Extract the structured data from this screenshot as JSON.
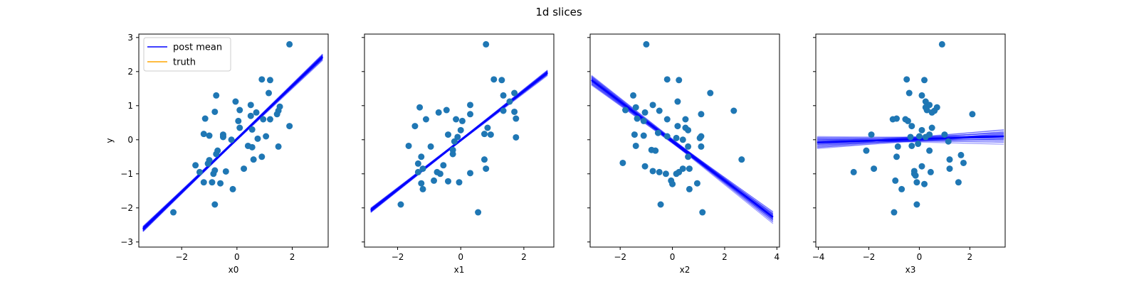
{
  "figure": {
    "title": "1d slices",
    "colors": {
      "points": "#1f77b4",
      "post_mean": "#0000ff",
      "truth": "#ffa500",
      "axes": "#000000"
    }
  },
  "chart_data": [
    {
      "type": "scatter",
      "xlabel": "x0",
      "ylabel": "y",
      "xlim": [
        -3.55,
        3.3
      ],
      "ylim": [
        -3.15,
        3.1
      ],
      "xticks": [
        -2,
        0,
        2
      ],
      "xtick_labels": [
        "−2",
        "0",
        "2"
      ],
      "yticks": [
        -3,
        -2,
        -1,
        0,
        1,
        2,
        3
      ],
      "ytick_labels": [
        "−3",
        "−2",
        "−1",
        "0",
        "1",
        "2",
        "3"
      ],
      "legend": {
        "position": "upper-left",
        "entries": [
          {
            "label": "post mean",
            "color": "#0000ff"
          },
          {
            "label": "truth",
            "color": "#ffa500"
          }
        ]
      },
      "line": {
        "x": [
          -3.4,
          3.1
        ],
        "y": [
          -2.62,
          2.43
        ],
        "spread_end": 0.07
      },
      "points": [
        [
          1.9,
          2.8
        ],
        [
          0.9,
          1.77
        ],
        [
          1.2,
          1.75
        ],
        [
          1.15,
          1.37
        ],
        [
          -0.75,
          1.3
        ],
        [
          -0.05,
          1.12
        ],
        [
          0.5,
          1.02
        ],
        [
          1.55,
          0.97
        ],
        [
          1.5,
          0.85
        ],
        [
          0.1,
          0.87
        ],
        [
          -0.8,
          0.82
        ],
        [
          0.7,
          0.8
        ],
        [
          1.45,
          0.75
        ],
        [
          0.5,
          0.7
        ],
        [
          -1.15,
          0.62
        ],
        [
          1.2,
          0.6
        ],
        [
          0.95,
          0.6
        ],
        [
          0.05,
          0.55
        ],
        [
          0.1,
          0.35
        ],
        [
          -1.2,
          0.17
        ],
        [
          -0.5,
          0.15
        ],
        [
          -1.0,
          0.12
        ],
        [
          0.55,
          0.3
        ],
        [
          1.05,
          0.1
        ],
        [
          -0.5,
          0.08
        ],
        [
          1.9,
          0.4
        ],
        [
          0.75,
          0.03
        ],
        [
          -0.2,
          0.0
        ],
        [
          0.4,
          -0.18
        ],
        [
          0.55,
          -0.22
        ],
        [
          1.5,
          -0.2
        ],
        [
          -0.7,
          -0.32
        ],
        [
          -0.75,
          -0.42
        ],
        [
          0.9,
          -0.5
        ],
        [
          -1.0,
          -0.6
        ],
        [
          0.6,
          -0.58
        ],
        [
          -1.5,
          -0.75
        ],
        [
          -1.05,
          -0.7
        ],
        [
          -1.35,
          -0.95
        ],
        [
          -0.8,
          -0.9
        ],
        [
          -0.85,
          -1.0
        ],
        [
          -0.4,
          -0.93
        ],
        [
          0.25,
          -0.85
        ],
        [
          -1.2,
          -1.25
        ],
        [
          -0.9,
          -1.25
        ],
        [
          -0.6,
          -1.28
        ],
        [
          -0.15,
          -1.45
        ],
        [
          -0.8,
          -1.9
        ],
        [
          -2.3,
          -2.13
        ],
        [
          -0.5,
          0.1
        ]
      ]
    },
    {
      "type": "scatter",
      "xlabel": "x1",
      "xlim": [
        -3.05,
        2.95
      ],
      "ylim": [
        -3.15,
        3.1
      ],
      "xticks": [
        -2,
        0,
        2
      ],
      "xtick_labels": [
        "−2",
        "0",
        "2"
      ],
      "yticks": [
        -3,
        -2,
        -1,
        0,
        1,
        2,
        3
      ],
      "line": {
        "x": [
          -2.85,
          2.75
        ],
        "y": [
          -2.07,
          1.97
        ],
        "spread_end": 0.06
      },
      "points": [
        [
          0.8,
          2.8
        ],
        [
          1.05,
          1.77
        ],
        [
          1.3,
          1.75
        ],
        [
          1.7,
          1.37
        ],
        [
          1.35,
          1.3
        ],
        [
          1.55,
          1.12
        ],
        [
          0.3,
          1.02
        ],
        [
          -1.3,
          0.95
        ],
        [
          -0.45,
          0.87
        ],
        [
          1.7,
          0.82
        ],
        [
          -0.7,
          0.8
        ],
        [
          1.35,
          0.85
        ],
        [
          0.3,
          0.75
        ],
        [
          -1.1,
          0.6
        ],
        [
          1.75,
          0.62
        ],
        [
          0.05,
          0.55
        ],
        [
          -0.15,
          0.6
        ],
        [
          0.85,
          0.35
        ],
        [
          -1.45,
          0.4
        ],
        [
          0.0,
          0.28
        ],
        [
          0.75,
          0.17
        ],
        [
          0.95,
          0.15
        ],
        [
          -0.4,
          0.15
        ],
        [
          -0.1,
          0.08
        ],
        [
          1.75,
          0.07
        ],
        [
          -0.2,
          -0.05
        ],
        [
          -1.65,
          -0.18
        ],
        [
          -0.95,
          -0.2
        ],
        [
          -0.25,
          -0.3
        ],
        [
          -0.25,
          -0.42
        ],
        [
          -1.25,
          -0.5
        ],
        [
          0.75,
          -0.58
        ],
        [
          -1.35,
          -0.7
        ],
        [
          -0.55,
          -0.75
        ],
        [
          0.8,
          -0.85
        ],
        [
          -1.2,
          -0.85
        ],
        [
          -0.75,
          -0.95
        ],
        [
          -0.65,
          -1.0
        ],
        [
          0.3,
          -0.98
        ],
        [
          -1.35,
          -0.95
        ],
        [
          -0.85,
          -1.2
        ],
        [
          -0.4,
          -1.22
        ],
        [
          -0.05,
          -1.25
        ],
        [
          -1.25,
          -1.28
        ],
        [
          -1.2,
          -1.45
        ],
        [
          -1.9,
          -1.9
        ],
        [
          0.55,
          -2.13
        ]
      ]
    },
    {
      "type": "scatter",
      "xlabel": "x2",
      "xlim": [
        -3.15,
        4.1
      ],
      "ylim": [
        -3.15,
        3.1
      ],
      "xticks": [
        -2,
        0,
        2,
        4
      ],
      "xtick_labels": [
        "−2",
        "0",
        "2",
        "4"
      ],
      "yticks": [
        -3,
        -2,
        -1,
        0,
        1,
        2,
        3
      ],
      "line": {
        "x": [
          -3.1,
          3.85
        ],
        "y": [
          1.75,
          -2.27
        ],
        "spread_end": 0.13
      },
      "points": [
        [
          -1.0,
          2.8
        ],
        [
          -0.2,
          1.77
        ],
        [
          0.25,
          1.75
        ],
        [
          1.45,
          1.37
        ],
        [
          -1.5,
          1.3
        ],
        [
          0.2,
          1.12
        ],
        [
          -0.75,
          1.02
        ],
        [
          -1.4,
          0.95
        ],
        [
          -1.8,
          0.87
        ],
        [
          2.35,
          0.85
        ],
        [
          -0.5,
          0.85
        ],
        [
          -1.05,
          0.8
        ],
        [
          1.1,
          0.75
        ],
        [
          -1.35,
          0.62
        ],
        [
          -0.2,
          0.6
        ],
        [
          0.5,
          0.6
        ],
        [
          -1.1,
          0.55
        ],
        [
          0.2,
          0.4
        ],
        [
          0.5,
          0.35
        ],
        [
          0.6,
          0.28
        ],
        [
          -0.55,
          0.2
        ],
        [
          -1.45,
          0.15
        ],
        [
          -1.1,
          0.12
        ],
        [
          1.1,
          0.1
        ],
        [
          0.15,
          0.05
        ],
        [
          1.05,
          0.05
        ],
        [
          -0.2,
          0.1
        ],
        [
          0.4,
          0.0
        ],
        [
          -1.4,
          -0.18
        ],
        [
          0.6,
          -0.2
        ],
        [
          1.1,
          -0.2
        ],
        [
          -0.8,
          -0.3
        ],
        [
          -0.65,
          -0.32
        ],
        [
          0.6,
          -0.5
        ],
        [
          2.65,
          -0.58
        ],
        [
          -1.9,
          -0.68
        ],
        [
          -1.05,
          -0.78
        ],
        [
          0.4,
          -0.85
        ],
        [
          0.65,
          -0.85
        ],
        [
          -0.75,
          -0.92
        ],
        [
          -0.5,
          -0.95
        ],
        [
          0.25,
          -0.95
        ],
        [
          -0.25,
          -1.0
        ],
        [
          0.15,
          -1.0
        ],
        [
          -0.05,
          -1.2
        ],
        [
          0.0,
          -1.3
        ],
        [
          0.95,
          -1.28
        ],
        [
          0.65,
          -1.45
        ],
        [
          -0.45,
          -1.9
        ],
        [
          1.15,
          -2.13
        ]
      ]
    },
    {
      "type": "scatter",
      "xlabel": "x3",
      "xlim": [
        -4.1,
        3.4
      ],
      "ylim": [
        -3.15,
        3.1
      ],
      "xticks": [
        -4,
        -2,
        0,
        2
      ],
      "xtick_labels": [
        "−4",
        "−2",
        "0",
        "2"
      ],
      "yticks": [
        -3,
        -2,
        -1,
        0,
        1,
        2,
        3
      ],
      "line": {
        "x": [
          -4.05,
          3.35
        ],
        "y": [
          -0.08,
          0.1
        ],
        "spread_end": 0.16
      },
      "points": [
        [
          0.9,
          2.8
        ],
        [
          -0.5,
          1.77
        ],
        [
          0.2,
          1.75
        ],
        [
          -0.4,
          1.37
        ],
        [
          0.1,
          1.3
        ],
        [
          0.25,
          1.12
        ],
        [
          0.4,
          1.02
        ],
        [
          0.25,
          0.95
        ],
        [
          0.3,
          0.87
        ],
        [
          0.7,
          0.95
        ],
        [
          0.6,
          0.85
        ],
        [
          0.5,
          0.8
        ],
        [
          2.1,
          0.75
        ],
        [
          -0.9,
          0.62
        ],
        [
          -0.55,
          0.6
        ],
        [
          -1.05,
          0.6
        ],
        [
          -0.45,
          0.55
        ],
        [
          -0.3,
          0.4
        ],
        [
          0.5,
          0.35
        ],
        [
          0.1,
          0.28
        ],
        [
          0.4,
          0.15
        ],
        [
          1.0,
          0.15
        ],
        [
          -1.9,
          0.15
        ],
        [
          0.0,
          0.1
        ],
        [
          0.25,
          0.08
        ],
        [
          -0.35,
          0.08
        ],
        [
          1.15,
          -0.05
        ],
        [
          -0.05,
          -0.12
        ],
        [
          -0.3,
          -0.18
        ],
        [
          -0.85,
          -0.2
        ],
        [
          -2.1,
          -0.32
        ],
        [
          0.4,
          -0.32
        ],
        [
          1.65,
          -0.45
        ],
        [
          -0.9,
          -0.5
        ],
        [
          1.2,
          -0.58
        ],
        [
          1.75,
          -0.68
        ],
        [
          0.1,
          -0.78
        ],
        [
          -1.8,
          -0.85
        ],
        [
          1.2,
          -0.85
        ],
        [
          -0.2,
          -0.92
        ],
        [
          -2.6,
          -0.95
        ],
        [
          -0.2,
          -1.0
        ],
        [
          0.45,
          -0.95
        ],
        [
          -0.15,
          -1.05
        ],
        [
          -0.95,
          -1.2
        ],
        [
          -0.1,
          -1.25
        ],
        [
          0.2,
          -1.3
        ],
        [
          1.55,
          -1.25
        ],
        [
          -0.7,
          -1.45
        ],
        [
          -0.1,
          -1.9
        ],
        [
          -1.0,
          -2.13
        ]
      ]
    }
  ]
}
